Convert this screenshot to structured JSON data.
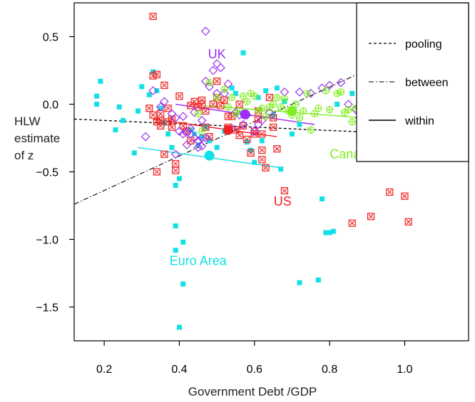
{
  "chart_data": {
    "type": "scatter",
    "title": "",
    "xlabel": "Government Debt /GDP",
    "ylabel": "HLW\nestimate\nof z",
    "xlim": [
      0.12,
      1.17
    ],
    "ylim": [
      -1.75,
      0.75
    ],
    "xticks": [
      "0.2",
      "0.4",
      "0.6",
      "0.8",
      "1.0"
    ],
    "xtick_values": [
      0.2,
      0.4,
      0.6,
      0.8,
      1.0
    ],
    "yticks": [
      "0.5",
      "0.0",
      "−0.5",
      "−1.0",
      "−1.5"
    ],
    "ytick_values": [
      0.5,
      0.0,
      -0.5,
      -1.0,
      -1.5
    ],
    "legend": {
      "position": "top-right",
      "entries": [
        {
          "label": "pooling",
          "style": "dashed"
        },
        {
          "label": "between",
          "style": "dashdot"
        },
        {
          "label": "within",
          "style": "solid"
        }
      ]
    },
    "series": [
      {
        "name": "Euro Area",
        "color": "#11e0e6",
        "marker": "filled-square",
        "label_position": {
          "x": 0.45,
          "y": -1.19
        },
        "points": [
          [
            0.19,
            0.17
          ],
          [
            0.18,
            0.06
          ],
          [
            0.18,
            0.0
          ],
          [
            0.23,
            -0.19
          ],
          [
            0.24,
            -0.02
          ],
          [
            0.25,
            -0.12
          ],
          [
            0.28,
            -0.36
          ],
          [
            0.29,
            -0.05
          ],
          [
            0.3,
            0.13
          ],
          [
            0.32,
            0.07
          ],
          [
            0.33,
            0.24
          ],
          [
            0.34,
            0.1
          ],
          [
            0.35,
            -0.03
          ],
          [
            0.36,
            -0.14
          ],
          [
            0.37,
            -0.22
          ],
          [
            0.38,
            -0.32
          ],
          [
            0.39,
            -0.6
          ],
          [
            0.4,
            -0.55
          ],
          [
            0.39,
            -0.9
          ],
          [
            0.39,
            -1.08
          ],
          [
            0.4,
            -1.65
          ],
          [
            0.41,
            -1.02
          ],
          [
            0.41,
            -1.33
          ],
          [
            0.43,
            -0.19
          ],
          [
            0.44,
            -0.22
          ],
          [
            0.45,
            -0.3
          ],
          [
            0.46,
            -0.24
          ],
          [
            0.47,
            -0.17
          ],
          [
            0.48,
            -0.27
          ],
          [
            0.5,
            -0.32
          ],
          [
            0.52,
            -0.2
          ],
          [
            0.54,
            0.12
          ],
          [
            0.55,
            0.08
          ],
          [
            0.57,
            0.38
          ],
          [
            0.58,
            -0.28
          ],
          [
            0.59,
            -0.34
          ],
          [
            0.6,
            -0.43
          ],
          [
            0.61,
            0.05
          ],
          [
            0.62,
            -0.27
          ],
          [
            0.63,
            0.1
          ],
          [
            0.65,
            -0.08
          ],
          [
            0.66,
            0.12
          ],
          [
            0.67,
            -0.48
          ],
          [
            0.68,
            0.02
          ],
          [
            0.7,
            -0.22
          ],
          [
            0.72,
            -0.15
          ],
          [
            0.72,
            -1.32
          ],
          [
            0.77,
            -1.3
          ],
          [
            0.78,
            -0.7
          ],
          [
            0.79,
            -0.95
          ],
          [
            0.8,
            -0.95
          ],
          [
            0.81,
            -0.94
          ],
          [
            0.82,
            0.0
          ],
          [
            0.86,
            0.08
          ],
          [
            0.88,
            0.05
          ],
          [
            0.88,
            -0.02
          ],
          [
            0.92,
            -0.06
          ]
        ],
        "mean": [
          0.48,
          -0.38
        ],
        "within_line": [
          [
            0.29,
            -0.32
          ],
          [
            0.67,
            -0.47
          ]
        ]
      },
      {
        "name": "US",
        "color": "#ee2020",
        "marker": "boxed-x",
        "label_position": {
          "x": 0.675,
          "y": -0.75
        },
        "points": [
          [
            0.33,
            0.65
          ],
          [
            0.33,
            0.21
          ],
          [
            0.34,
            0.22
          ],
          [
            0.32,
            -0.03
          ],
          [
            0.33,
            -0.08
          ],
          [
            0.34,
            -0.5
          ],
          [
            0.34,
            -0.13
          ],
          [
            0.35,
            -0.07
          ],
          [
            0.35,
            -0.12
          ],
          [
            0.35,
            -0.16
          ],
          [
            0.36,
            -0.37
          ],
          [
            0.36,
            0.14
          ],
          [
            0.37,
            -0.03
          ],
          [
            0.37,
            -0.13
          ],
          [
            0.38,
            -0.11
          ],
          [
            0.38,
            -0.17
          ],
          [
            0.39,
            -0.49
          ],
          [
            0.39,
            -0.44
          ],
          [
            0.4,
            0.06
          ],
          [
            0.41,
            -0.16
          ],
          [
            0.42,
            -0.2
          ],
          [
            0.43,
            -0.27
          ],
          [
            0.43,
            -0.01
          ],
          [
            0.44,
            0.02
          ],
          [
            0.45,
            -0.02
          ],
          [
            0.46,
            0.03
          ],
          [
            0.46,
            0.0
          ],
          [
            0.47,
            -0.05
          ],
          [
            0.47,
            -0.17
          ],
          [
            0.48,
            -0.24
          ],
          [
            0.49,
            0.0
          ],
          [
            0.5,
            0.05
          ],
          [
            0.5,
            0.17
          ],
          [
            0.51,
            -0.01
          ],
          [
            0.52,
            0.03
          ],
          [
            0.53,
            -0.09
          ],
          [
            0.53,
            -0.17
          ],
          [
            0.54,
            -0.09
          ],
          [
            0.55,
            -0.19
          ],
          [
            0.56,
            0.0
          ],
          [
            0.56,
            -0.23
          ],
          [
            0.57,
            -0.16
          ],
          [
            0.58,
            -0.26
          ],
          [
            0.59,
            -0.36
          ],
          [
            0.6,
            -0.2
          ],
          [
            0.6,
            -0.22
          ],
          [
            0.61,
            -0.05
          ],
          [
            0.61,
            -0.11
          ],
          [
            0.62,
            -0.22
          ],
          [
            0.62,
            -0.34
          ],
          [
            0.62,
            -0.41
          ],
          [
            0.63,
            -0.47
          ],
          [
            0.64,
            0.05
          ],
          [
            0.65,
            -0.1
          ],
          [
            0.65,
            -0.17
          ],
          [
            0.66,
            -0.33
          ],
          [
            0.68,
            -0.64
          ],
          [
            0.86,
            -0.88
          ],
          [
            0.91,
            -0.83
          ],
          [
            0.96,
            -0.65
          ],
          [
            1.0,
            -0.68
          ],
          [
            1.01,
            -0.87
          ]
        ],
        "mean": [
          0.53,
          -0.19
        ],
        "within_line": [
          [
            0.33,
            -0.11
          ],
          [
            0.66,
            -0.24
          ]
        ]
      },
      {
        "name": "UK",
        "color": "#9b30f0",
        "marker": "open-diamond",
        "label_position": {
          "x": 0.5,
          "y": 0.34
        },
        "points": [
          [
            0.31,
            -0.24
          ],
          [
            0.33,
            0.1
          ],
          [
            0.35,
            -0.02
          ],
          [
            0.36,
            0.02
          ],
          [
            0.38,
            -0.07
          ],
          [
            0.39,
            -0.1
          ],
          [
            0.39,
            -0.37
          ],
          [
            0.4,
            -0.2
          ],
          [
            0.41,
            -0.09
          ],
          [
            0.41,
            -0.22
          ],
          [
            0.42,
            -0.3
          ],
          [
            0.42,
            -0.21
          ],
          [
            0.43,
            -0.22
          ],
          [
            0.43,
            -0.18
          ],
          [
            0.44,
            -0.06
          ],
          [
            0.44,
            -0.25
          ],
          [
            0.45,
            -0.27
          ],
          [
            0.45,
            -0.32
          ],
          [
            0.46,
            -0.12
          ],
          [
            0.46,
            -0.25
          ],
          [
            0.46,
            -0.31
          ],
          [
            0.47,
            -0.25
          ],
          [
            0.47,
            0.17
          ],
          [
            0.47,
            0.54
          ],
          [
            0.48,
            0.13
          ],
          [
            0.49,
            0.25
          ],
          [
            0.5,
            0.3
          ],
          [
            0.5,
            0.08
          ],
          [
            0.51,
            0.27
          ],
          [
            0.52,
            0.08
          ],
          [
            0.53,
            0.15
          ],
          [
            0.54,
            -0.18
          ],
          [
            0.55,
            -0.06
          ],
          [
            0.56,
            -0.08
          ],
          [
            0.57,
            -0.15
          ],
          [
            0.58,
            -0.08
          ],
          [
            0.6,
            -0.2
          ],
          [
            0.61,
            -0.15
          ],
          [
            0.62,
            -0.12
          ],
          [
            0.64,
            -0.06
          ],
          [
            0.68,
            0.09
          ],
          [
            0.72,
            0.09
          ],
          [
            0.75,
            0.08
          ],
          [
            0.78,
            0.12
          ],
          [
            0.8,
            0.14
          ],
          [
            0.83,
            0.16
          ],
          [
            0.85,
            0.0
          ],
          [
            0.87,
            -0.04
          ],
          [
            0.88,
            -0.1
          ],
          [
            0.9,
            -0.11
          ],
          [
            0.92,
            -0.08
          ]
        ],
        "mean": [
          0.575,
          -0.075
        ],
        "within_line": [
          [
            0.39,
            0.0
          ],
          [
            0.76,
            -0.15
          ]
        ]
      },
      {
        "name": "Canada",
        "color": "#80ee20",
        "marker": "circled-plus",
        "label_position": {
          "x": 0.86,
          "y": -0.4
        },
        "points": [
          [
            0.45,
            -0.07
          ],
          [
            0.46,
            -0.2
          ],
          [
            0.48,
            0.16
          ],
          [
            0.5,
            0.05
          ],
          [
            0.52,
            0.11
          ],
          [
            0.53,
            -0.02
          ],
          [
            0.54,
            0.05
          ],
          [
            0.55,
            -0.07
          ],
          [
            0.56,
            -0.05
          ],
          [
            0.57,
            0.06
          ],
          [
            0.58,
            0.02
          ],
          [
            0.59,
            0.08
          ],
          [
            0.6,
            0.06
          ],
          [
            0.61,
            -0.05
          ],
          [
            0.62,
            -0.03
          ],
          [
            0.63,
            -0.09
          ],
          [
            0.64,
            -0.02
          ],
          [
            0.65,
            0.0
          ],
          [
            0.66,
            0.05
          ],
          [
            0.67,
            -0.02
          ],
          [
            0.68,
            0.04
          ],
          [
            0.69,
            -0.05
          ],
          [
            0.7,
            -0.08
          ],
          [
            0.71,
            0.0
          ],
          [
            0.72,
            -0.1
          ],
          [
            0.73,
            -0.05
          ],
          [
            0.74,
            0.08
          ],
          [
            0.75,
            -0.19
          ],
          [
            0.76,
            -0.07
          ],
          [
            0.77,
            -0.03
          ],
          [
            0.79,
            0.1
          ],
          [
            0.8,
            -0.04
          ],
          [
            0.82,
            0.08
          ],
          [
            0.83,
            0.09
          ],
          [
            0.84,
            -0.06
          ],
          [
            0.85,
            -0.04
          ],
          [
            0.86,
            -0.13
          ],
          [
            0.87,
            -0.03
          ],
          [
            0.88,
            0.01
          ],
          [
            0.89,
            -0.05
          ],
          [
            0.9,
            -0.1
          ]
        ],
        "mean": [
          0.7,
          -0.05
        ],
        "within_line": [
          [
            0.47,
            -0.01
          ],
          [
            0.93,
            -0.11
          ]
        ]
      }
    ],
    "fit_lines": {
      "pooling": [
        [
          0.12,
          -0.11
        ],
        [
          1.17,
          -0.24
        ]
      ],
      "between": [
        [
          0.12,
          -0.74
        ],
        [
          1.17,
          0.6
        ]
      ]
    }
  }
}
